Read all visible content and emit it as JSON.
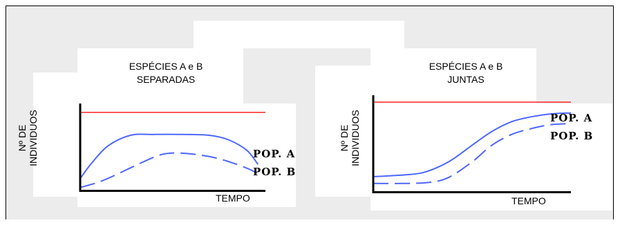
{
  "chart_data": [
    {
      "type": "line",
      "title_lines": [
        "ESPÉCIES A e B",
        "SEPARADAS"
      ],
      "ylabel_lines": [
        "Nº DE",
        "INDIVIDUOS"
      ],
      "xlabel": "TEMPO",
      "xlim": [
        0,
        10
      ],
      "ylim": [
        0,
        10
      ],
      "colors": {
        "limit": "#ff3333",
        "series": "#4d66ff"
      },
      "limit_line": {
        "y": 9.0
      },
      "series": [
        {
          "name": "POP. A",
          "style": "solid",
          "x": [
            0,
            0.6,
            1.5,
            2.7,
            4.0,
            5.5,
            7.0,
            8.0,
            9.0,
            9.6
          ],
          "values": [
            1.5,
            3.2,
            5.2,
            6.4,
            6.5,
            6.5,
            6.4,
            5.9,
            4.7,
            3.1
          ]
        },
        {
          "name": "POP. B",
          "style": "dashed",
          "x": [
            0,
            1.0,
            2.0,
            3.0,
            4.2,
            5.0,
            6.0,
            7.2,
            8.2,
            9.2,
            9.6
          ],
          "values": [
            0.5,
            1.1,
            2.0,
            3.0,
            4.1,
            4.4,
            4.3,
            3.9,
            3.3,
            2.5,
            2.0
          ]
        }
      ]
    },
    {
      "type": "line",
      "title_lines": [
        "ESPÉCIES A e B",
        "JUNTAS"
      ],
      "ylabel_lines": [
        "Nº DE",
        "INDIVIDUOS"
      ],
      "xlabel": "TEMPO",
      "xlim": [
        0,
        10
      ],
      "ylim": [
        0,
        10
      ],
      "colors": {
        "limit": "#ff3333",
        "series": "#4d66ff"
      },
      "limit_line": {
        "y": 9.3
      },
      "series": [
        {
          "name": "POP. A",
          "style": "solid",
          "x": [
            0,
            1.0,
            2.5,
            3.8,
            5.0,
            6.0,
            7.0,
            8.0,
            9.0,
            10.0
          ],
          "values": [
            1.7,
            1.8,
            2.1,
            3.2,
            4.9,
            6.3,
            7.3,
            7.8,
            8.1,
            8.2
          ]
        },
        {
          "name": "POP. B",
          "style": "dashed",
          "x": [
            0,
            1.5,
            2.8,
            3.8,
            5.0,
            6.0,
            7.0,
            8.0,
            9.0,
            10.0
          ],
          "values": [
            1.0,
            1.0,
            1.1,
            1.6,
            3.2,
            4.9,
            6.0,
            6.6,
            7.0,
            7.1
          ]
        }
      ]
    }
  ]
}
